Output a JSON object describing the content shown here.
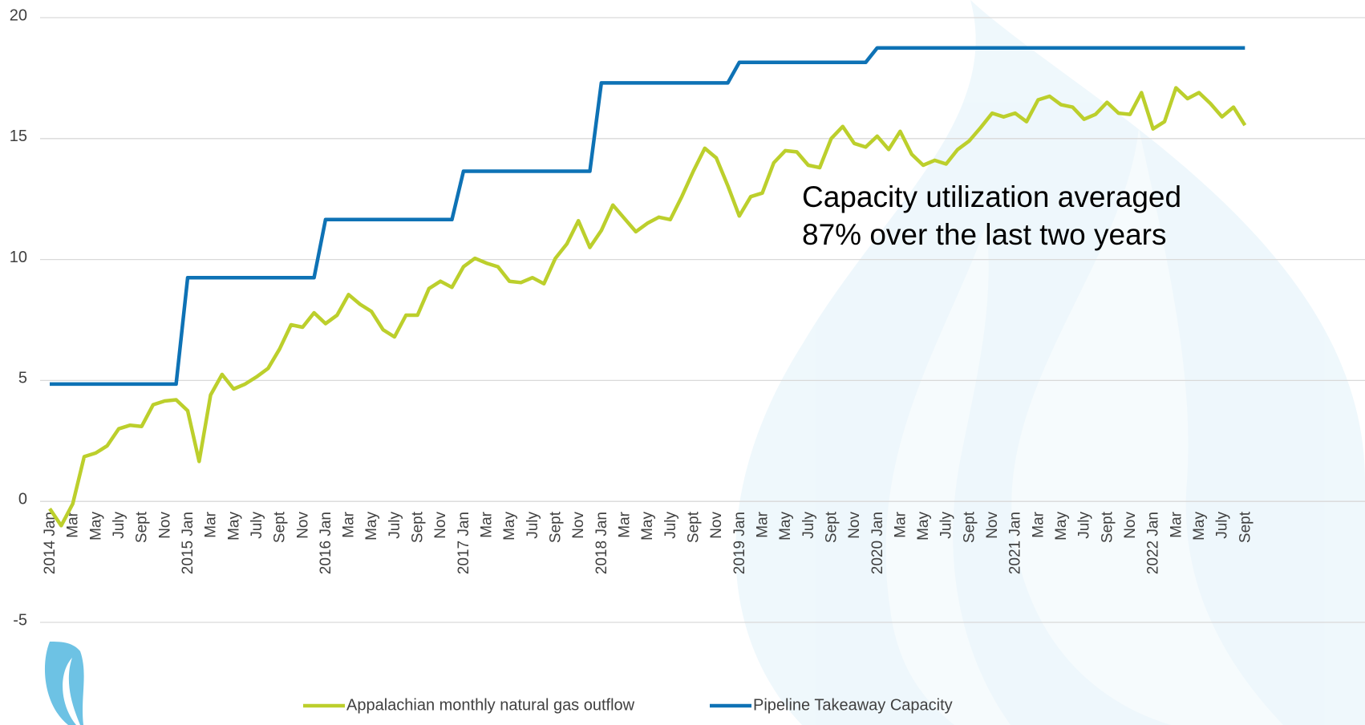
{
  "chart_data": {
    "type": "line",
    "categories": [
      "2014 Jan",
      null,
      "Mar",
      null,
      "May",
      null,
      "July",
      null,
      "Sept",
      null,
      "Nov",
      null,
      "2015 Jan",
      null,
      "Mar",
      null,
      "May",
      null,
      "July",
      null,
      "Sept",
      null,
      "Nov",
      null,
      "2016 Jan",
      null,
      "Mar",
      null,
      "May",
      null,
      "July",
      null,
      "Sept",
      null,
      "Nov",
      null,
      "2017 Jan",
      null,
      "Mar",
      null,
      "May",
      null,
      "July",
      null,
      "Sept",
      null,
      "Nov",
      null,
      "2018 Jan",
      null,
      "Mar",
      null,
      "May",
      null,
      "July",
      null,
      "Sept",
      null,
      "Nov",
      null,
      "2019 Jan",
      null,
      "Mar",
      null,
      "May",
      null,
      "July",
      null,
      "Sept",
      null,
      "Nov",
      null,
      "2020 Jan",
      null,
      "Mar",
      null,
      "May",
      null,
      "July",
      null,
      "Sept",
      null,
      "Nov",
      null,
      "2021 Jan",
      null,
      "Mar",
      null,
      "May",
      null,
      "July",
      null,
      "Sept",
      null,
      "Nov",
      null,
      "2022 Jan",
      null,
      "Mar",
      null,
      "May",
      null,
      "July",
      null,
      "Sept"
    ],
    "series": [
      {
        "name": "Appalachian monthly natural gas outflow",
        "color": "#bccf2c",
        "values": [
          -0.3,
          -1.0,
          -0.1,
          1.85,
          2.0,
          2.3,
          3.0,
          3.15,
          3.1,
          4.0,
          4.15,
          4.2,
          3.75,
          1.65,
          4.4,
          5.25,
          4.65,
          4.85,
          5.15,
          5.5,
          6.3,
          7.3,
          7.2,
          7.8,
          7.35,
          7.7,
          8.55,
          8.15,
          7.85,
          7.1,
          6.8,
          7.7,
          7.7,
          8.8,
          9.1,
          8.85,
          9.7,
          10.05,
          9.85,
          9.7,
          9.1,
          9.05,
          9.25,
          9.0,
          10.05,
          10.65,
          11.6,
          10.5,
          11.2,
          12.25,
          11.7,
          11.15,
          11.5,
          11.75,
          11.65,
          12.6,
          13.65,
          14.6,
          14.2,
          13.05,
          11.8,
          12.6,
          12.75,
          14.0,
          14.5,
          14.45,
          13.9,
          13.8,
          15.0,
          15.5,
          14.8,
          14.65,
          15.1,
          14.55,
          15.3,
          14.35,
          13.9,
          14.1,
          13.95,
          14.55,
          14.9,
          15.45,
          16.05,
          15.9,
          16.05,
          15.7,
          16.6,
          16.75,
          16.4,
          16.3,
          15.8,
          16.0,
          16.5,
          16.05,
          16.0,
          16.9,
          15.4,
          15.7,
          17.1,
          16.65,
          16.9,
          16.45,
          15.9,
          16.3,
          15.55
        ]
      },
      {
        "name": "Pipeline Takeaway Capacity",
        "color": "#0e72b5",
        "values": [
          4.85,
          4.85,
          4.85,
          4.85,
          4.85,
          4.85,
          4.85,
          4.85,
          4.85,
          4.85,
          4.85,
          4.85,
          9.25,
          9.25,
          9.25,
          9.25,
          9.25,
          9.25,
          9.25,
          9.25,
          9.25,
          9.25,
          9.25,
          9.25,
          11.65,
          11.65,
          11.65,
          11.65,
          11.65,
          11.65,
          11.65,
          11.65,
          11.65,
          11.65,
          11.65,
          11.65,
          13.65,
          13.65,
          13.65,
          13.65,
          13.65,
          13.65,
          13.65,
          13.65,
          13.65,
          13.65,
          13.65,
          13.65,
          17.3,
          17.3,
          17.3,
          17.3,
          17.3,
          17.3,
          17.3,
          17.3,
          17.3,
          17.3,
          17.3,
          17.3,
          18.15,
          18.15,
          18.15,
          18.15,
          18.15,
          18.15,
          18.15,
          18.15,
          18.15,
          18.15,
          18.15,
          18.15,
          18.75,
          18.75,
          18.75,
          18.75,
          18.75,
          18.75,
          18.75,
          18.75,
          18.75,
          18.75,
          18.75,
          18.75,
          18.75,
          18.75,
          18.75,
          18.75,
          18.75,
          18.75,
          18.75,
          18.75,
          18.75,
          18.75,
          18.75,
          18.75,
          18.75,
          18.75,
          18.75,
          18.75,
          18.75,
          18.75,
          18.75,
          18.75,
          18.75
        ]
      }
    ],
    "annotation": [
      "Capacity utilization averaged",
      "87% over the last two years"
    ],
    "ylim": [
      -5,
      20
    ],
    "yticks": [
      -5,
      0,
      5,
      10,
      15,
      20
    ],
    "grid": true,
    "legend": "bottom"
  }
}
